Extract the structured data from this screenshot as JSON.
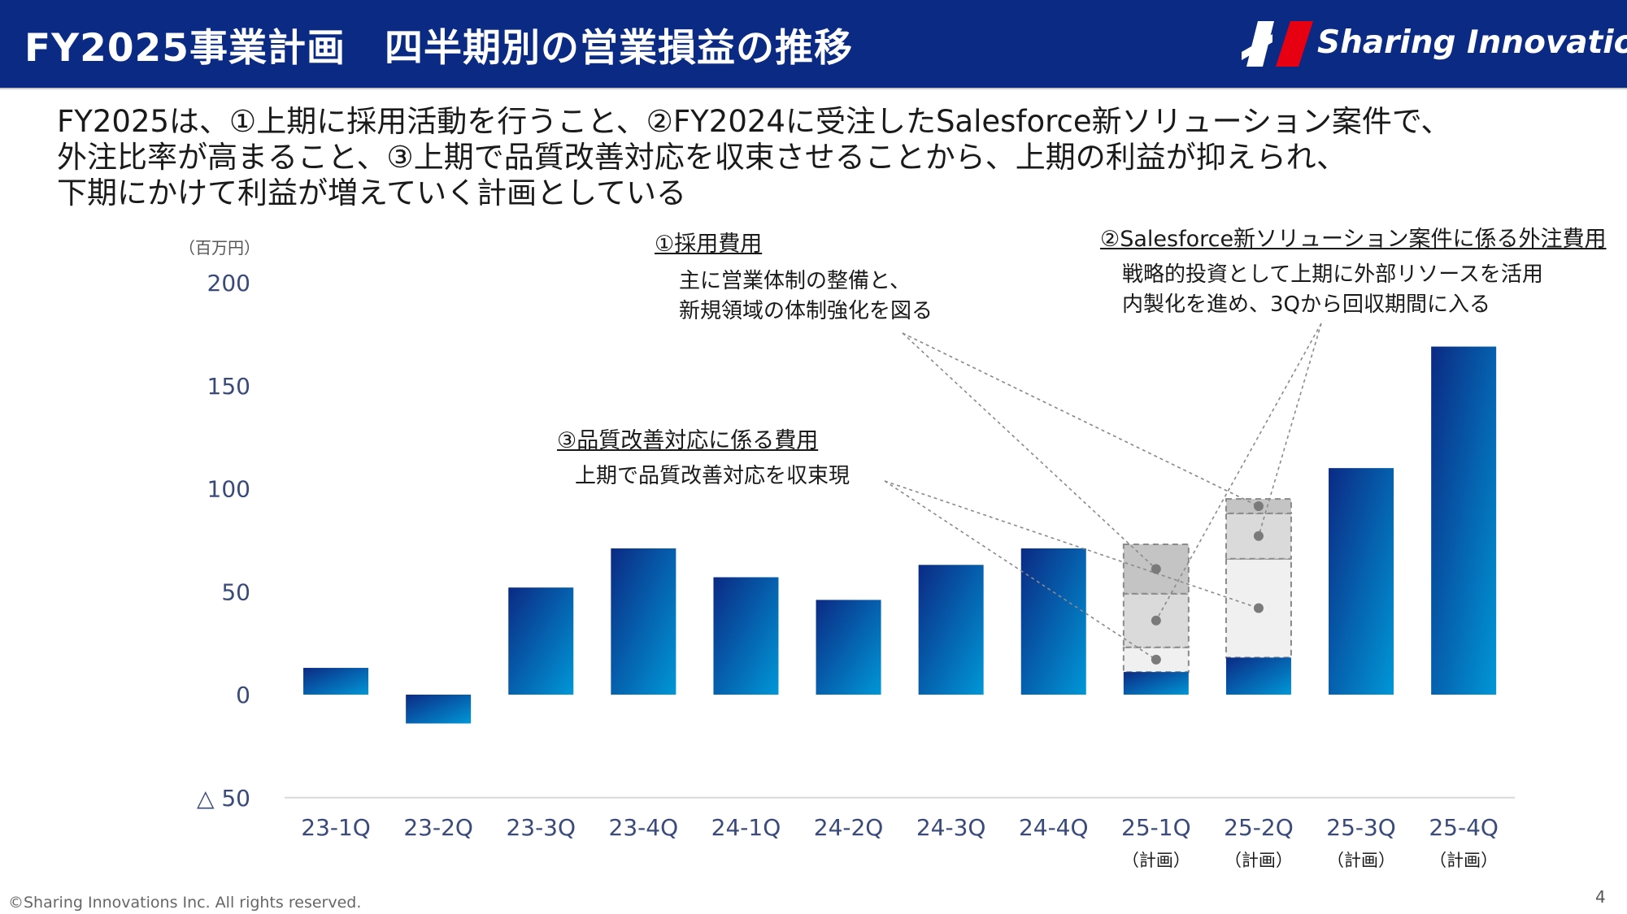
{
  "header": {
    "title": "FY2025事業計画　四半期別の営業損益の推移",
    "logo_text": "Sharing Innovations"
  },
  "intro": {
    "line1": "FY2025は、①上期に採用活動を行うこと、②FY2024に受注したSalesforce新ソリューション案件で、",
    "line2": "外注比率が高まること、③上期で品質改善対応を収束させることから、上期の利益が抑えられ、",
    "line3": "下期にかけて利益が増えていく計画としている"
  },
  "annotations": {
    "a1_title": "①採用費用",
    "a1_line1": "主に営業体制の整備と、",
    "a1_line2": "新規領域の体制強化を図る",
    "a2_title": "②Salesforce新ソリューション案件に係る外注費用",
    "a2_line1": "戦略的投資として上期に外部リソースを活用",
    "a2_line2": "内製化を進め、3Qから回収期間に入る",
    "a3_title": "③品質改善対応に係る費用",
    "a3_line1": "上期で品質改善対応を収束現"
  },
  "chart_data": {
    "type": "bar",
    "unit_label": "（百万円）",
    "categories": [
      "23-1Q",
      "23-2Q",
      "23-3Q",
      "23-4Q",
      "24-1Q",
      "24-2Q",
      "24-3Q",
      "24-4Q",
      "25-1Q",
      "25-2Q",
      "25-3Q",
      "25-4Q"
    ],
    "category_sublabels": [
      "",
      "",
      "",
      "",
      "",
      "",
      "",
      "",
      "（計画）",
      "（計画）",
      "（計画）",
      "（計画）"
    ],
    "values": [
      13,
      -14,
      52,
      71,
      57,
      46,
      63,
      71,
      11,
      18,
      110,
      169
    ],
    "ylim": [
      -50,
      200
    ],
    "yticks": [
      200,
      150,
      100,
      50,
      0,
      -50
    ],
    "ytick_labels": [
      "200",
      "150",
      "100",
      "50",
      "0",
      "△ 50"
    ],
    "grid": false,
    "bar_color_top": "#0b2a84",
    "bar_color_bottom": "#0097d7",
    "cost_stacks": [
      {
        "category": "25-1Q",
        "segments": [
          {
            "kind": "③品質改善対応に係る費用",
            "from": 11,
            "to": 23,
            "fill": "#f0f0f0"
          },
          {
            "kind": "②Salesforce新ソリューション案件に係る外注費用",
            "from": 23,
            "to": 49,
            "fill": "#dadada"
          },
          {
            "kind": "①採用費用",
            "from": 49,
            "to": 73,
            "fill": "#c4c4c4"
          }
        ]
      },
      {
        "category": "25-2Q",
        "segments": [
          {
            "kind": "③品質改善対応に係る費用",
            "from": 18,
            "to": 66,
            "fill": "#f0f0f0"
          },
          {
            "kind": "②Salesforce新ソリューション案件に係る外注費用",
            "from": 66,
            "to": 88,
            "fill": "#dadada"
          },
          {
            "kind": "①採用費用",
            "from": 88,
            "to": 95,
            "fill": "#c4c4c4"
          }
        ]
      }
    ]
  },
  "footer": {
    "copyright": "©Sharing Innovations Inc. All rights reserved.",
    "page": "4"
  },
  "colors": {
    "header_bg": "#0b2a84",
    "logo_accent": "#e60012"
  }
}
